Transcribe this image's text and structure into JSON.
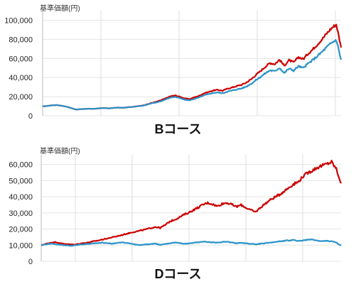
{
  "chart_data": [
    {
      "type": "line",
      "title": "Bコース",
      "ylabel": "基準価額(円)",
      "yticks": [
        0,
        20000,
        40000,
        60000,
        80000,
        100000
      ],
      "ytick_labels": [
        "0",
        "20,000",
        "40,000",
        "60,000",
        "80,000",
        "100,000"
      ],
      "ylim": [
        0,
        110000
      ],
      "grid": true,
      "series": [
        {
          "color": "#cc0000",
          "values": [
            9800,
            10300,
            10900,
            11200,
            10400,
            9600,
            8000,
            6500,
            6900,
            7100,
            7400,
            7200,
            7800,
            8100,
            7700,
            8200,
            8500,
            8400,
            8900,
            9300,
            9900,
            10700,
            11800,
            13400,
            14600,
            16300,
            18200,
            20400,
            21200,
            19800,
            18100,
            17400,
            19200,
            20800,
            23400,
            24800,
            26400,
            27100,
            26200,
            28300,
            29600,
            31100,
            32400,
            34800,
            38100,
            42600,
            46800,
            51300,
            55200,
            54100,
            58600,
            52400,
            58100,
            55800,
            61400,
            59200,
            64800,
            69400,
            74700,
            80200,
            86300,
            91800,
            95700,
            71300
          ]
        },
        {
          "color": "#2a93c9",
          "values": [
            9800,
            10300,
            10900,
            11200,
            10400,
            9600,
            8000,
            6500,
            6900,
            7100,
            7400,
            7200,
            7800,
            8100,
            7700,
            8200,
            8500,
            8400,
            8900,
            9300,
            9900,
            10400,
            11500,
            12900,
            13900,
            15300,
            17100,
            19100,
            19700,
            18300,
            16800,
            16100,
            17600,
            19000,
            21300,
            22500,
            23900,
            24400,
            23500,
            25300,
            26400,
            27600,
            28600,
            30600,
            33400,
            37200,
            40700,
            44400,
            47600,
            46500,
            50200,
            44700,
            49400,
            47300,
            51900,
            49900,
            54500,
            58200,
            62500,
            67000,
            71900,
            76400,
            79500,
            58600
          ]
        }
      ]
    },
    {
      "type": "line",
      "title": "Dコース",
      "ylabel": "基準価額(円)",
      "yticks": [
        0,
        10000,
        20000,
        30000,
        40000,
        50000,
        60000
      ],
      "ytick_labels": [
        "0",
        "10,000",
        "20,000",
        "30,000",
        "40,000",
        "50,000",
        "60,000"
      ],
      "ylim": [
        0,
        66000
      ],
      "grid": true,
      "series": [
        {
          "color": "#cc0000",
          "values": [
            10000,
            10800,
            11500,
            11900,
            11200,
            10800,
            10500,
            10300,
            10900,
            11300,
            11700,
            12400,
            12900,
            13600,
            14200,
            14900,
            15600,
            16300,
            17100,
            17900,
            18500,
            19100,
            19800,
            20600,
            21300,
            20700,
            22400,
            24600,
            25800,
            27200,
            28900,
            30200,
            31800,
            33400,
            35100,
            36200,
            35400,
            34100,
            35600,
            36300,
            35200,
            33800,
            34900,
            33200,
            31800,
            30500,
            33100,
            35600,
            37800,
            39600,
            41200,
            43400,
            45600,
            47800,
            49200,
            52600,
            54800,
            56400,
            58100,
            59200,
            60300,
            61600,
            57200,
            48300
          ]
        },
        {
          "color": "#2a93c9",
          "values": [
            10000,
            10500,
            10900,
            10600,
            10200,
            9900,
            9600,
            9900,
            10300,
            10600,
            10800,
            11100,
            11300,
            11500,
            11200,
            10900,
            11400,
            11700,
            11300,
            10800,
            10300,
            10100,
            10400,
            10700,
            10900,
            10200,
            10800,
            11200,
            11600,
            11300,
            10900,
            11100,
            11400,
            11800,
            12200,
            12000,
            11700,
            11400,
            11900,
            12100,
            11600,
            11200,
            11500,
            11100,
            10800,
            10500,
            10900,
            11200,
            11600,
            11900,
            12300,
            12700,
            12900,
            13100,
            12600,
            12900,
            13300,
            13500,
            12800,
            12400,
            12700,
            12300,
            11600,
            9600
          ]
        }
      ]
    }
  ]
}
